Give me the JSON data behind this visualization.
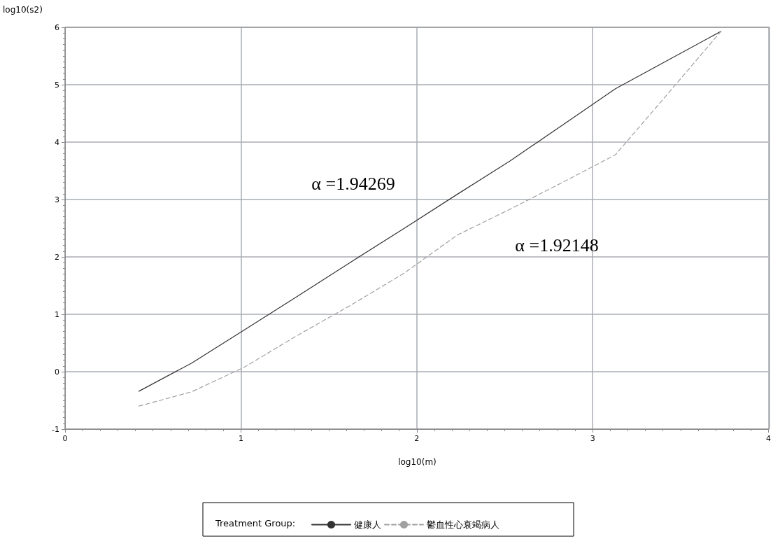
{
  "chart_data": {
    "type": "line",
    "xlabel": "log10(m)",
    "ylabel": "log10(s2)",
    "legend_title": "Treatment Group:",
    "x": [
      0.42,
      0.72,
      1.02,
      1.32,
      1.62,
      1.93,
      2.23,
      2.53,
      2.83,
      3.13,
      3.43,
      3.73
    ],
    "series": [
      {
        "name": "健康人",
        "color": "#333333",
        "line_style": "solid",
        "values": [
          -0.34,
          0.15,
          0.73,
          1.31,
          1.9,
          2.5,
          3.09,
          3.67,
          4.3,
          4.93,
          5.43,
          5.93
        ]
      },
      {
        "name": "鬱血性心衰竭病人",
        "color": "#a0a0a0",
        "line_style": "dashed",
        "values": [
          -0.6,
          -0.35,
          0.08,
          0.63,
          1.15,
          1.72,
          2.38,
          2.83,
          3.3,
          3.78,
          4.85,
          5.93
        ]
      }
    ],
    "xlim": [
      0,
      4
    ],
    "xticks": [
      0,
      1,
      2,
      3,
      4
    ],
    "ylim": [
      -1,
      6
    ],
    "yticks": [
      -1,
      0,
      1,
      2,
      3,
      4,
      5,
      6
    ],
    "annotations": [
      "α =1.94269",
      "α =1.92148"
    ],
    "grid": true,
    "legend": "bottom",
    "marker": "none"
  }
}
